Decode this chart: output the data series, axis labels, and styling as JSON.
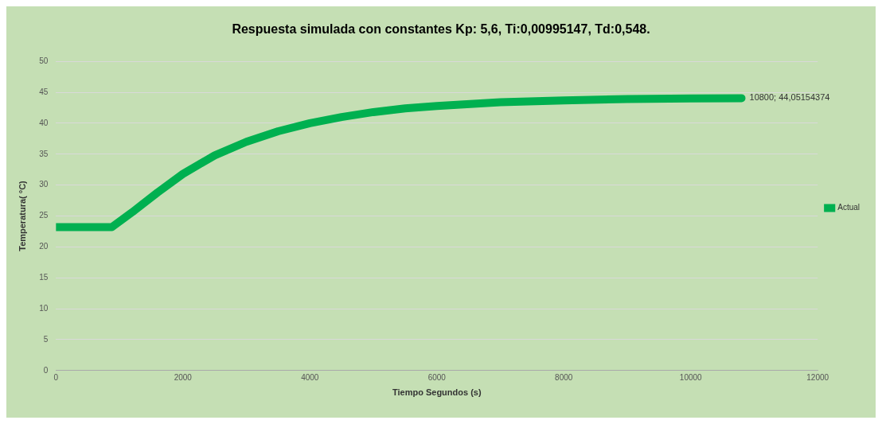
{
  "chart_data": {
    "type": "line",
    "title": "Respuesta simulada con constantes Kp: 5,6, Ti:0,00995147, Td:0,548.",
    "xlabel": "Tiempo Segundos (s)",
    "ylabel": "Temperatura( °C)",
    "series": [
      {
        "name": "Actual",
        "color": "#00b050",
        "x": [
          0,
          880,
          1200,
          1600,
          2000,
          2500,
          3000,
          3500,
          4000,
          4500,
          5000,
          5500,
          6000,
          7000,
          8000,
          9000,
          10000,
          10800
        ],
        "values": [
          23.2,
          23.2,
          25.6,
          28.8,
          31.8,
          34.8,
          37.0,
          38.7,
          40.0,
          41.0,
          41.8,
          42.4,
          42.8,
          43.4,
          43.7,
          43.9,
          44.0,
          44.05154374
        ]
      }
    ],
    "xlim": [
      0,
      12000
    ],
    "xticks": [
      0,
      2000,
      4000,
      6000,
      8000,
      10000,
      12000
    ],
    "ylim": [
      0,
      50
    ],
    "yticks": [
      0,
      5,
      10,
      15,
      20,
      25,
      30,
      35,
      40,
      45,
      50
    ],
    "grid": "y",
    "legend": "right",
    "marker": "none",
    "line_style": "solid",
    "annotations": [
      {
        "text": "10800; 44,05154374",
        "x": 10800,
        "y": 44.05154374
      }
    ]
  }
}
